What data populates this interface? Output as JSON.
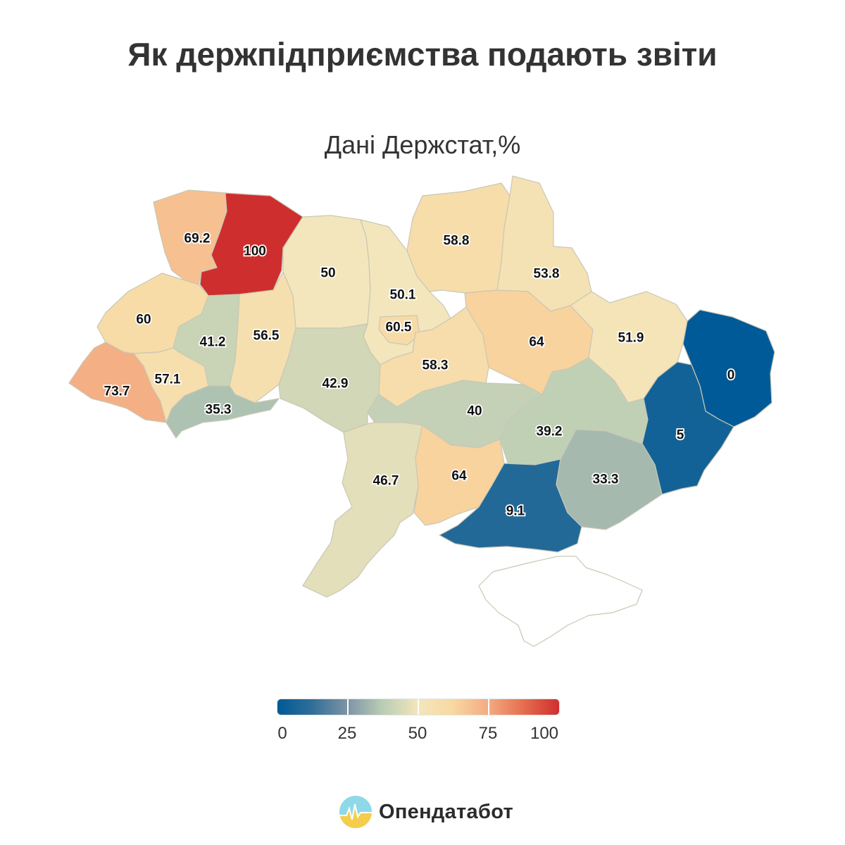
{
  "title": "Як держпідприємства подають звіти",
  "subtitle": "Дані Держстат,%",
  "colors": {
    "low": "#005a97",
    "mid": "#f3e6bc",
    "high": "#cf2e2e",
    "no_data": "#ffffff",
    "border": "#c9c7b5"
  },
  "regions": [
    {
      "name": "Волинська",
      "value": 69.2
    },
    {
      "name": "Рівненська",
      "value": 100
    },
    {
      "name": "Житомирська",
      "value": 50
    },
    {
      "name": "Київська",
      "value": 50.1
    },
    {
      "name": "Чернігівська",
      "value": 58.8
    },
    {
      "name": "Сумська",
      "value": 53.8
    },
    {
      "name": "Львівська",
      "value": 60
    },
    {
      "name": "Тернопільська",
      "value": 41.2
    },
    {
      "name": "Хмельницька",
      "value": 56.5
    },
    {
      "name": "Вінницька",
      "value": 42.9
    },
    {
      "name": "м. Київ",
      "value": 60.5
    },
    {
      "name": "Черкаська",
      "value": 58.3
    },
    {
      "name": "Полтавська",
      "value": 64
    },
    {
      "name": "Харківська",
      "value": 51.9
    },
    {
      "name": "Луганська",
      "value": 0
    },
    {
      "name": "Закарпатська",
      "value": 73.7
    },
    {
      "name": "Івано-Франківська",
      "value": 57.1
    },
    {
      "name": "Чернівецька",
      "value": 35.3
    },
    {
      "name": "Кіровоградська",
      "value": 40
    },
    {
      "name": "Дніпропетровська",
      "value": 39.2
    },
    {
      "name": "Донецька",
      "value": 5
    },
    {
      "name": "Одеська",
      "value": 46.7
    },
    {
      "name": "Миколаївська",
      "value": 64
    },
    {
      "name": "Херсонська",
      "value": 9.1
    },
    {
      "name": "Запорізька",
      "value": 33.3
    },
    {
      "name": "АР Крим",
      "value": null
    }
  ],
  "legend": {
    "min": 0,
    "max": 100,
    "ticks": [
      "0",
      "25",
      "50",
      "75",
      "100"
    ]
  },
  "brand": {
    "name": "Опендатабот",
    "icon": "opendatabot-logo-icon"
  }
}
